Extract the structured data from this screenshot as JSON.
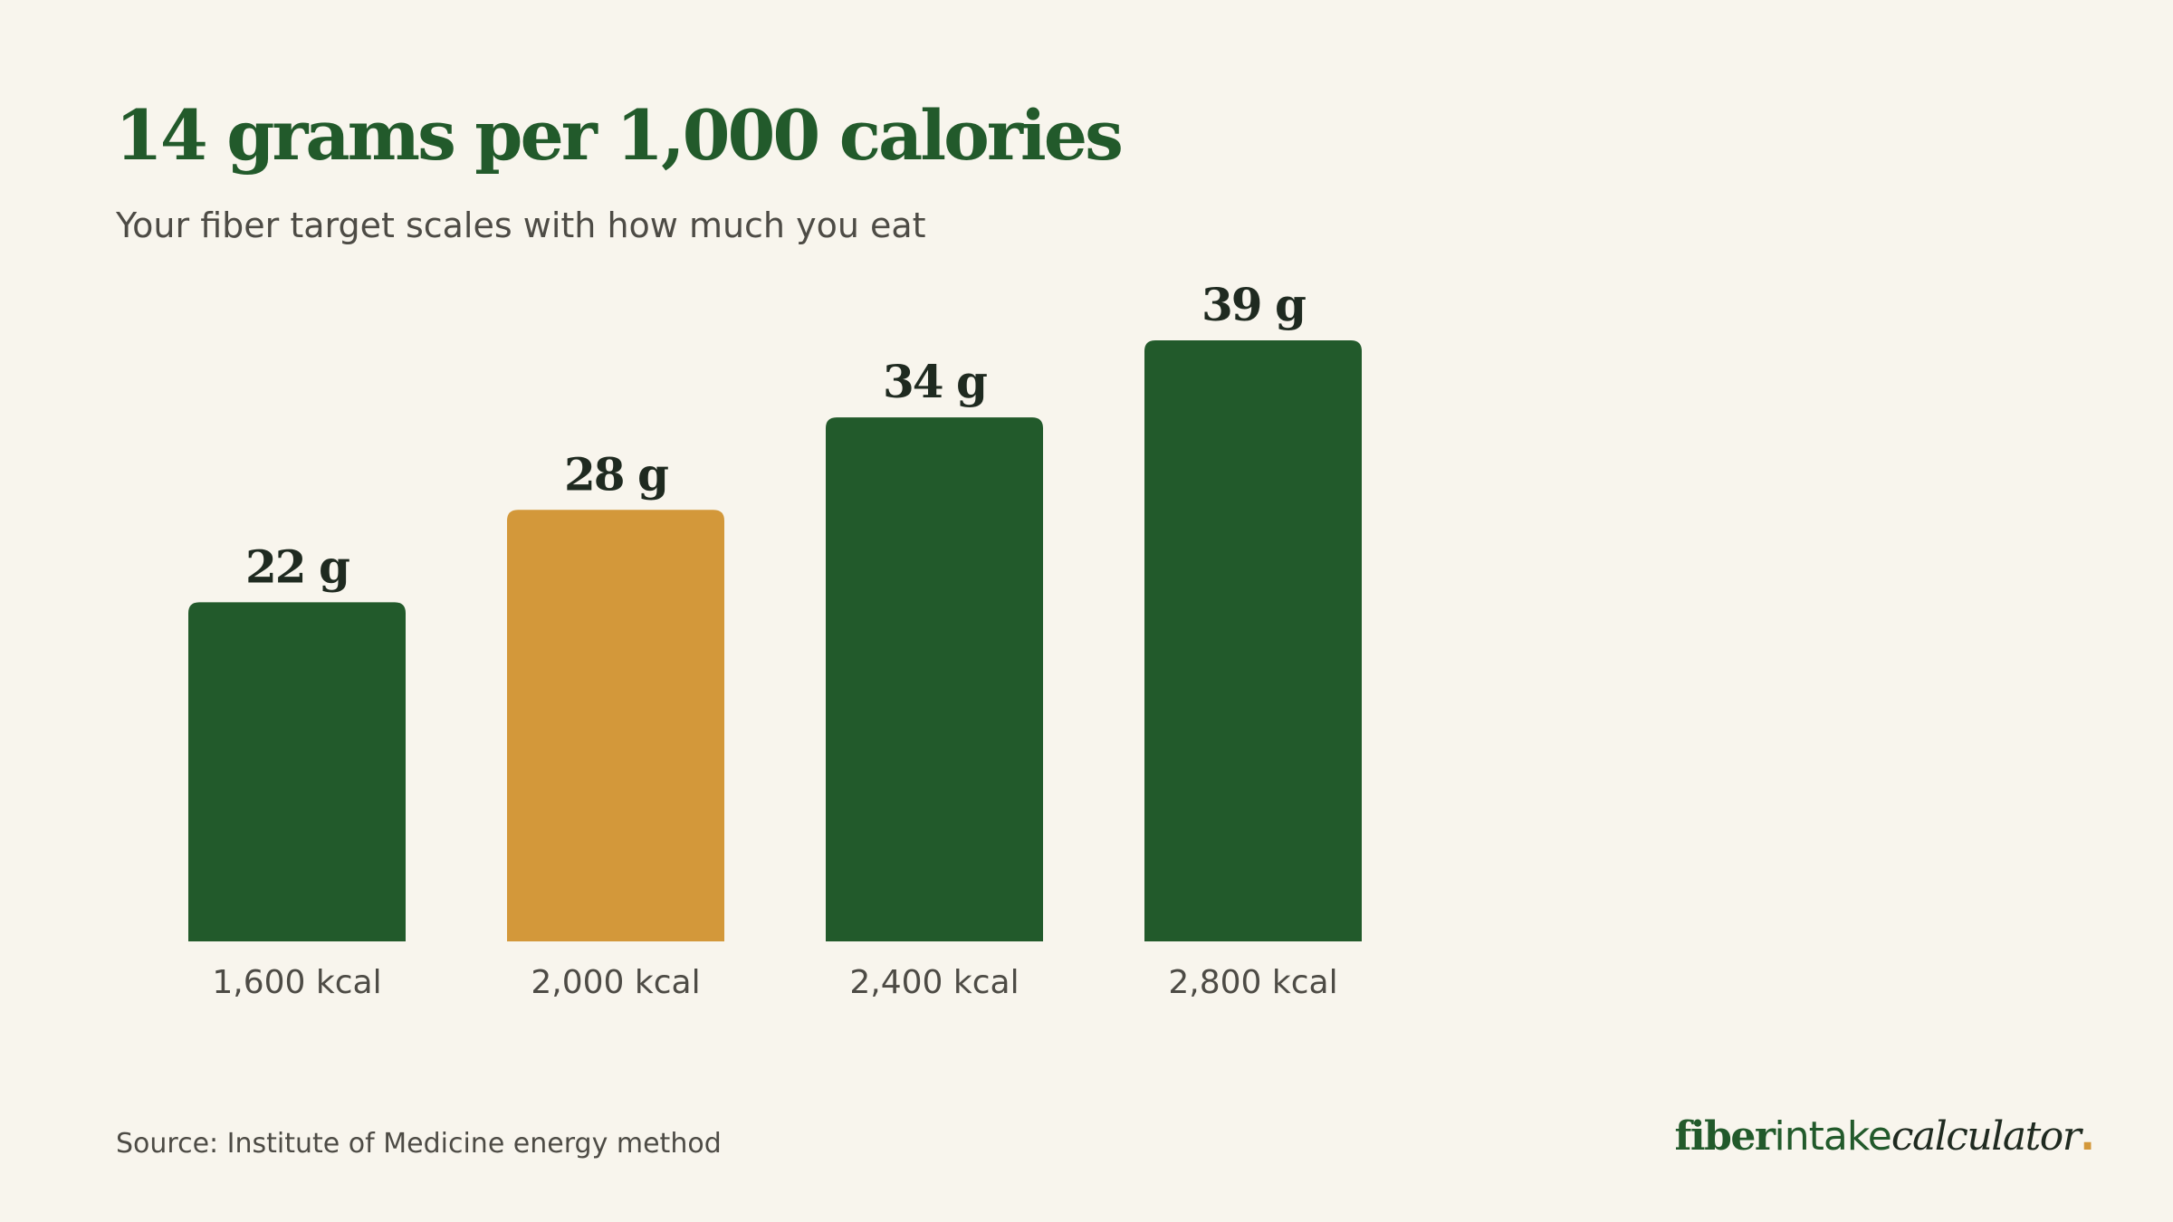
{
  "header": {
    "title": "14 grams per 1,000 calories",
    "subtitle": "Your fiber target scales with how much you eat"
  },
  "footer": {
    "source": "Source: Institute of Medicine energy method",
    "brand": {
      "part1": "fiber",
      "part2": "intake",
      "part3": "calculator",
      "dot": "."
    }
  },
  "colors": {
    "background": "#f8f5ed",
    "primary_green": "#225a2b",
    "highlight_gold": "#d3983a",
    "label_text": "#1f2a20",
    "muted_text": "#4d4b45"
  },
  "chart_data": {
    "type": "bar",
    "title": "14 grams per 1,000 calories",
    "subtitle": "Your fiber target scales with how much you eat",
    "xlabel": "",
    "ylabel": "",
    "categories": [
      "1,600 kcal",
      "2,000 kcal",
      "2,400 kcal",
      "2,800 kcal"
    ],
    "values": [
      22,
      28,
      34,
      39
    ],
    "value_labels": [
      "22 g",
      "28 g",
      "34 g",
      "39 g"
    ],
    "highlight_index": 1,
    "ylim": [
      0,
      39
    ],
    "grid": false,
    "legend": "none"
  }
}
